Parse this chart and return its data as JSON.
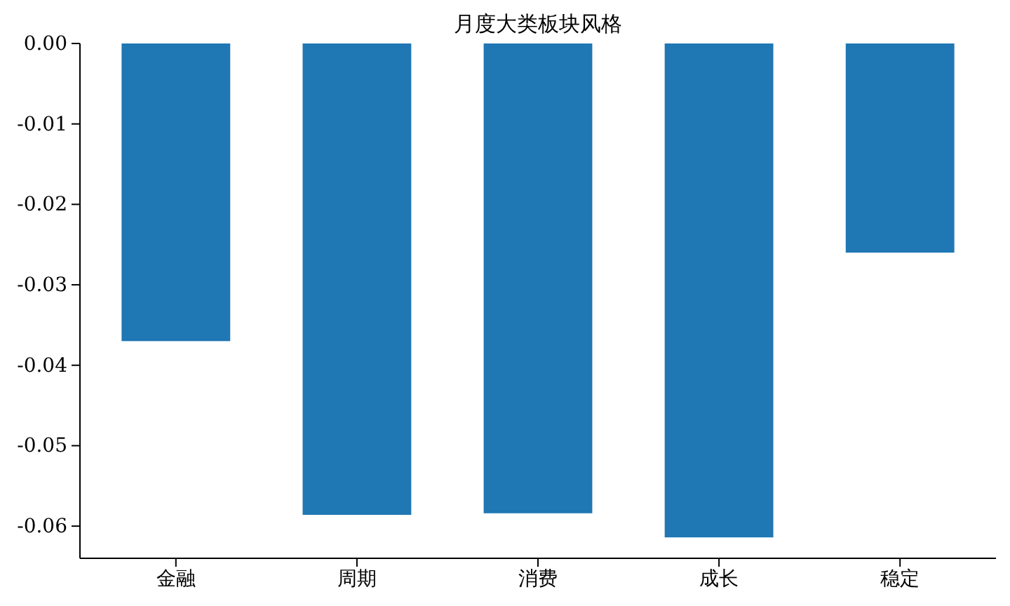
{
  "chart_data": {
    "type": "bar",
    "title": "月度大类板块风格",
    "categories": [
      "金融",
      "周期",
      "消费",
      "成长",
      "稳定"
    ],
    "values": [
      -0.037,
      -0.0586,
      -0.0584,
      -0.0614,
      -0.026
    ],
    "color": "#1f77b4",
    "ylim": [
      -0.064,
      0
    ],
    "yticks": [
      {
        "value": 0,
        "label": "0.00"
      },
      {
        "value": -0.01,
        "label": "-0.01"
      },
      {
        "value": -0.02,
        "label": "-0.02"
      },
      {
        "value": -0.03,
        "label": "-0.03"
      },
      {
        "value": -0.04,
        "label": "-0.04"
      },
      {
        "value": -0.05,
        "label": "-0.05"
      },
      {
        "value": -0.06,
        "label": "-0.06"
      }
    ],
    "grid": false
  }
}
